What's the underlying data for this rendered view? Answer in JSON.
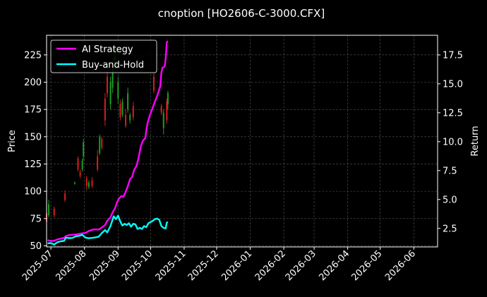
{
  "chart_data": {
    "type": "line",
    "title": "cnoption [HO2606-C-3000.CFX]",
    "ylabel_left": "Price",
    "ylabel_right": "Return",
    "ylim_left": [
      49,
      243
    ],
    "ylim_right": [
      0.9,
      19.2
    ],
    "xlim": [
      "2025-06-27",
      "2026-06-23"
    ],
    "grid": true,
    "legend_position": "top-left",
    "x_ticks": [
      "2025-07",
      "2025-08",
      "2025-09",
      "2025-10",
      "2025-11",
      "2025-12",
      "2026-01",
      "2026-02",
      "2026-03",
      "2026-04",
      "2026-05",
      "2026-06"
    ],
    "y_ticks_left": [
      50,
      75,
      100,
      125,
      150,
      175,
      200,
      225
    ],
    "y_ticks_right": [
      "2.5",
      "5.0",
      "7.5",
      "10.0",
      "12.5",
      "15.0",
      "17.5"
    ],
    "series": [
      {
        "name": "AI Strategy",
        "color": "#ff00ff",
        "axis": "right",
        "points": [
          [
            "2025-06-28",
            1.48
          ],
          [
            "2025-07-01",
            1.42
          ],
          [
            "2025-07-04",
            1.43
          ],
          [
            "2025-07-07",
            1.55
          ],
          [
            "2025-07-10",
            1.62
          ],
          [
            "2025-07-13",
            1.68
          ],
          [
            "2025-07-15",
            1.85
          ],
          [
            "2025-07-18",
            1.92
          ],
          [
            "2025-07-21",
            1.95
          ],
          [
            "2025-07-24",
            1.98
          ],
          [
            "2025-07-27",
            2.03
          ],
          [
            "2025-07-30",
            2.08
          ],
          [
            "2025-08-02",
            2.12
          ],
          [
            "2025-08-05",
            2.28
          ],
          [
            "2025-08-08",
            2.38
          ],
          [
            "2025-08-11",
            2.42
          ],
          [
            "2025-08-14",
            2.4
          ],
          [
            "2025-08-17",
            2.58
          ],
          [
            "2025-08-20",
            2.8
          ],
          [
            "2025-08-22",
            3.15
          ],
          [
            "2025-08-25",
            3.45
          ],
          [
            "2025-08-27",
            3.9
          ],
          [
            "2025-08-29",
            4.2
          ],
          [
            "2025-08-31",
            4.75
          ],
          [
            "2025-09-02",
            5.1
          ],
          [
            "2025-09-04",
            5.3
          ],
          [
            "2025-09-06",
            5.25
          ],
          [
            "2025-09-08",
            5.65
          ],
          [
            "2025-09-10",
            6.15
          ],
          [
            "2025-09-12",
            6.75
          ],
          [
            "2025-09-14",
            6.95
          ],
          [
            "2025-09-16",
            7.6
          ],
          [
            "2025-09-18",
            7.9
          ],
          [
            "2025-09-20",
            8.6
          ],
          [
            "2025-09-22",
            9.6
          ],
          [
            "2025-09-24",
            10.1
          ],
          [
            "2025-09-26",
            10.3
          ],
          [
            "2025-09-28",
            11.5
          ],
          [
            "2025-09-30",
            12.2
          ],
          [
            "2025-10-02",
            12.7
          ],
          [
            "2025-10-04",
            13.2
          ],
          [
            "2025-10-06",
            13.7
          ],
          [
            "2025-10-08",
            14.2
          ],
          [
            "2025-10-10",
            14.8
          ],
          [
            "2025-10-11",
            16.0
          ],
          [
            "2025-10-12",
            16.4
          ],
          [
            "2025-10-14",
            16.5
          ],
          [
            "2025-10-15",
            17.2
          ],
          [
            "2025-10-16",
            18.6
          ],
          [
            "2025-10-17",
            18.7
          ]
        ]
      },
      {
        "name": "Buy-and-Hold",
        "color": "#00ffff",
        "axis": "right",
        "points": [
          [
            "2025-06-28",
            1.2
          ],
          [
            "2025-07-01",
            1.24
          ],
          [
            "2025-07-04",
            1.1
          ],
          [
            "2025-07-07",
            1.3
          ],
          [
            "2025-07-10",
            1.38
          ],
          [
            "2025-07-13",
            1.42
          ],
          [
            "2025-07-15",
            1.7
          ],
          [
            "2025-07-18",
            1.66
          ],
          [
            "2025-07-21",
            1.68
          ],
          [
            "2025-07-24",
            1.82
          ],
          [
            "2025-07-27",
            1.86
          ],
          [
            "2025-07-30",
            1.95
          ],
          [
            "2025-08-02",
            1.7
          ],
          [
            "2025-08-05",
            1.65
          ],
          [
            "2025-08-08",
            1.68
          ],
          [
            "2025-08-11",
            1.72
          ],
          [
            "2025-08-14",
            1.78
          ],
          [
            "2025-08-17",
            2.1
          ],
          [
            "2025-08-20",
            2.35
          ],
          [
            "2025-08-22",
            2.15
          ],
          [
            "2025-08-25",
            2.7
          ],
          [
            "2025-08-28",
            3.55
          ],
          [
            "2025-08-30",
            3.3
          ],
          [
            "2025-09-01",
            3.6
          ],
          [
            "2025-09-03",
            3.1
          ],
          [
            "2025-09-05",
            2.75
          ],
          [
            "2025-09-07",
            2.9
          ],
          [
            "2025-09-09",
            2.8
          ],
          [
            "2025-09-11",
            2.95
          ],
          [
            "2025-09-13",
            2.65
          ],
          [
            "2025-09-15",
            2.9
          ],
          [
            "2025-09-17",
            2.85
          ],
          [
            "2025-09-19",
            2.45
          ],
          [
            "2025-09-21",
            2.55
          ],
          [
            "2025-09-23",
            2.45
          ],
          [
            "2025-09-25",
            2.7
          ],
          [
            "2025-09-27",
            2.6
          ],
          [
            "2025-09-29",
            2.95
          ],
          [
            "2025-10-01",
            3.05
          ],
          [
            "2025-10-03",
            3.15
          ],
          [
            "2025-10-05",
            3.3
          ],
          [
            "2025-10-07",
            3.35
          ],
          [
            "2025-10-09",
            3.25
          ],
          [
            "2025-10-11",
            2.7
          ],
          [
            "2025-10-13",
            2.55
          ],
          [
            "2025-10-15",
            2.5
          ],
          [
            "2025-10-16",
            3.0
          ],
          [
            "2025-10-17",
            3.05
          ]
        ]
      }
    ],
    "candles": [
      {
        "d": "2025-06-27",
        "o": 72,
        "c": 80,
        "h": 84,
        "l": 70,
        "up": false
      },
      {
        "d": "2025-06-29",
        "o": 78,
        "c": 88,
        "h": 92,
        "l": 76,
        "up": true
      },
      {
        "d": "2025-07-04",
        "o": 78,
        "c": 84,
        "h": 86,
        "l": 76,
        "up": false
      },
      {
        "d": "2025-07-14",
        "o": 92,
        "c": 98,
        "h": 101,
        "l": 90,
        "up": false
      },
      {
        "d": "2025-07-23",
        "o": 107,
        "c": 108,
        "h": 109,
        "l": 106,
        "up": true
      },
      {
        "d": "2025-07-26",
        "o": 120,
        "c": 130,
        "h": 132,
        "l": 118,
        "up": false
      },
      {
        "d": "2025-07-28",
        "o": 114,
        "c": 118,
        "h": 120,
        "l": 112,
        "up": false
      },
      {
        "d": "2025-07-30",
        "o": 120,
        "c": 128,
        "h": 130,
        "l": 118,
        "up": true
      },
      {
        "d": "2025-07-31",
        "o": 132,
        "c": 145,
        "h": 148,
        "l": 128,
        "up": true
      },
      {
        "d": "2025-08-03",
        "o": 105,
        "c": 112,
        "h": 114,
        "l": 101,
        "up": false
      },
      {
        "d": "2025-08-05",
        "o": 104,
        "c": 108,
        "h": 110,
        "l": 102,
        "up": true
      },
      {
        "d": "2025-08-08",
        "o": 105,
        "c": 110,
        "h": 113,
        "l": 103,
        "up": false
      },
      {
        "d": "2025-08-13",
        "o": 120,
        "c": 132,
        "h": 138,
        "l": 118,
        "up": false
      },
      {
        "d": "2025-08-15",
        "o": 135,
        "c": 150,
        "h": 152,
        "l": 133,
        "up": true
      },
      {
        "d": "2025-08-17",
        "o": 140,
        "c": 148,
        "h": 150,
        "l": 138,
        "up": false
      },
      {
        "d": "2025-08-20",
        "o": 165,
        "c": 185,
        "h": 190,
        "l": 160,
        "up": false
      },
      {
        "d": "2025-08-22",
        "o": 190,
        "c": 205,
        "h": 210,
        "l": 186,
        "up": false
      },
      {
        "d": "2025-08-25",
        "o": 180,
        "c": 200,
        "h": 205,
        "l": 175,
        "up": true
      },
      {
        "d": "2025-08-27",
        "o": 195,
        "c": 215,
        "h": 220,
        "l": 190,
        "up": true
      },
      {
        "d": "2025-08-29",
        "o": 215,
        "c": 232,
        "h": 235,
        "l": 212,
        "up": true
      },
      {
        "d": "2025-09-01",
        "o": 185,
        "c": 200,
        "h": 205,
        "l": 180,
        "up": true
      },
      {
        "d": "2025-09-03",
        "o": 168,
        "c": 180,
        "h": 184,
        "l": 165,
        "up": false
      },
      {
        "d": "2025-09-05",
        "o": 170,
        "c": 182,
        "h": 185,
        "l": 168,
        "up": true
      },
      {
        "d": "2025-09-08",
        "o": 160,
        "c": 170,
        "h": 175,
        "l": 158,
        "up": false
      },
      {
        "d": "2025-09-10",
        "o": 175,
        "c": 190,
        "h": 195,
        "l": 172,
        "up": true
      },
      {
        "d": "2025-09-12",
        "o": 165,
        "c": 170,
        "h": 172,
        "l": 162,
        "up": true
      },
      {
        "d": "2025-09-15",
        "o": 168,
        "c": 178,
        "h": 182,
        "l": 165,
        "up": false
      },
      {
        "d": "2025-10-04",
        "o": 192,
        "c": 205,
        "h": 208,
        "l": 190,
        "up": false
      },
      {
        "d": "2025-10-11",
        "o": 172,
        "c": 178,
        "h": 180,
        "l": 170,
        "up": false
      },
      {
        "d": "2025-10-13",
        "o": 158,
        "c": 172,
        "h": 175,
        "l": 152,
        "up": true
      },
      {
        "d": "2025-10-16",
        "o": 165,
        "c": 182,
        "h": 185,
        "l": 162,
        "up": false
      },
      {
        "d": "2025-10-17",
        "o": 180,
        "c": 190,
        "h": 192,
        "l": 175,
        "up": true
      }
    ]
  }
}
